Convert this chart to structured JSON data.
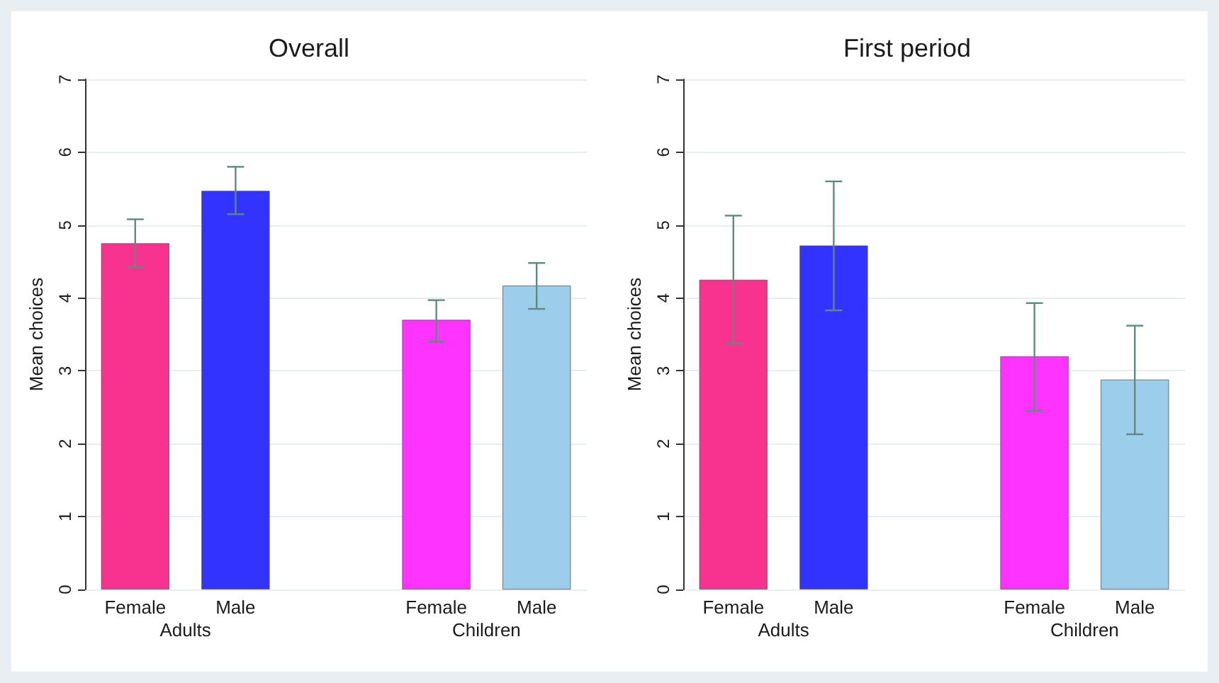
{
  "chart_data": [
    {
      "type": "bar",
      "title": "Overall",
      "ylabel": "Mean choices",
      "categories": [
        "Female",
        "Male",
        null,
        "Female",
        "Male"
      ],
      "values": [
        4.75,
        5.47,
        null,
        3.7,
        4.17
      ],
      "colors": [
        "#f8338f",
        "#3333ff",
        null,
        "#ff33ff",
        "#9ccdea"
      ],
      "errors": [
        [
          4.42,
          5.08
        ],
        [
          5.15,
          5.8
        ],
        null,
        [
          3.4,
          3.97
        ],
        [
          3.85,
          4.48
        ]
      ],
      "ylim": [
        0,
        7
      ],
      "yticks": [
        0,
        1,
        2,
        3,
        4,
        5,
        6,
        7
      ],
      "grid": "y",
      "annotations": [
        "Adults",
        "Children"
      ]
    },
    {
      "type": "bar",
      "title": "First period",
      "ylabel": "Mean choices",
      "categories": [
        "Female",
        "Male",
        null,
        "Female",
        "Male"
      ],
      "values": [
        4.25,
        4.72,
        null,
        3.2,
        2.88
      ],
      "colors": [
        "#f8338f",
        "#3333ff",
        null,
        "#ff33ff",
        "#9ccdea"
      ],
      "errors": [
        [
          3.37,
          5.13
        ],
        [
          3.83,
          5.6
        ],
        null,
        [
          2.45,
          3.93
        ],
        [
          2.13,
          3.62
        ]
      ],
      "ylim": [
        0,
        7
      ],
      "yticks": [
        0,
        1,
        2,
        3,
        4,
        5,
        6,
        7
      ],
      "grid": "y",
      "annotations": [
        "Adults",
        "Children"
      ]
    }
  ]
}
